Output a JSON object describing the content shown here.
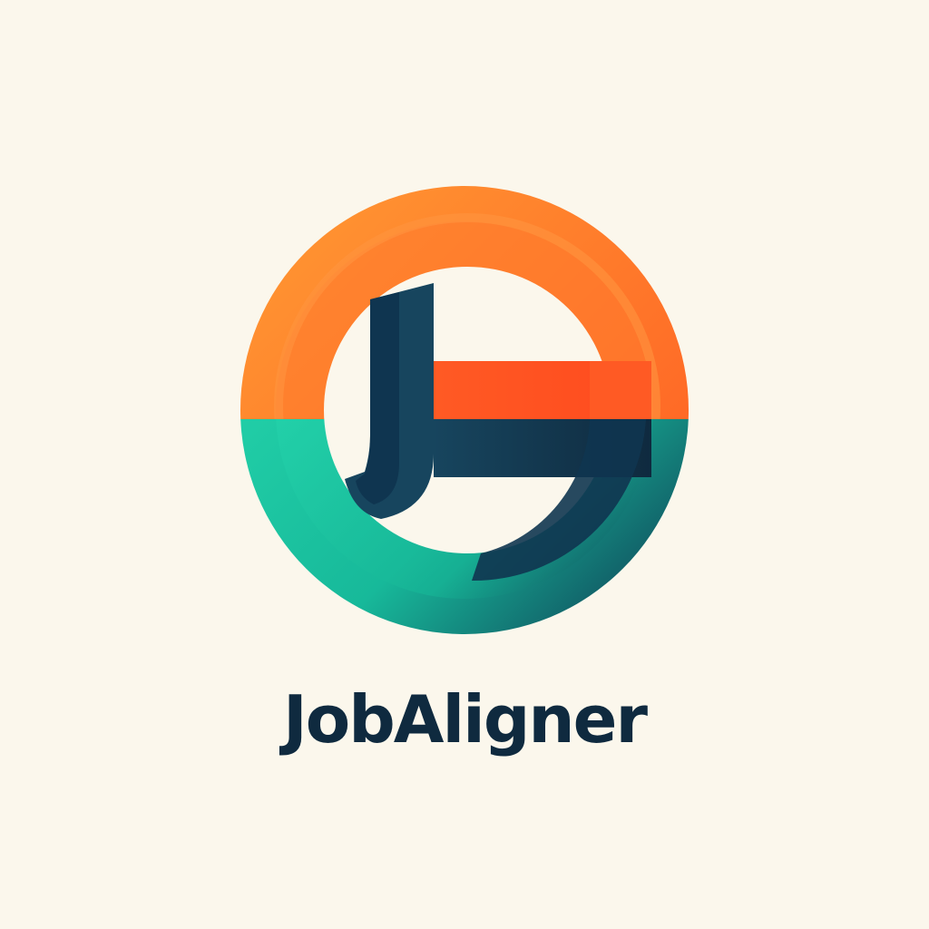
{
  "brand": {
    "name": "JobAligner"
  },
  "logo": {
    "icon": "ja-monogram-circle-icon",
    "colors": {
      "background": "#FBF7EC",
      "orange_light": "#FF8A2B",
      "orange_deep": "#FF5A24",
      "teal": "#1FD1A6",
      "teal_dark": "#0E9C86",
      "navy": "#0F2A3F",
      "navy_mid": "#17455E"
    }
  }
}
